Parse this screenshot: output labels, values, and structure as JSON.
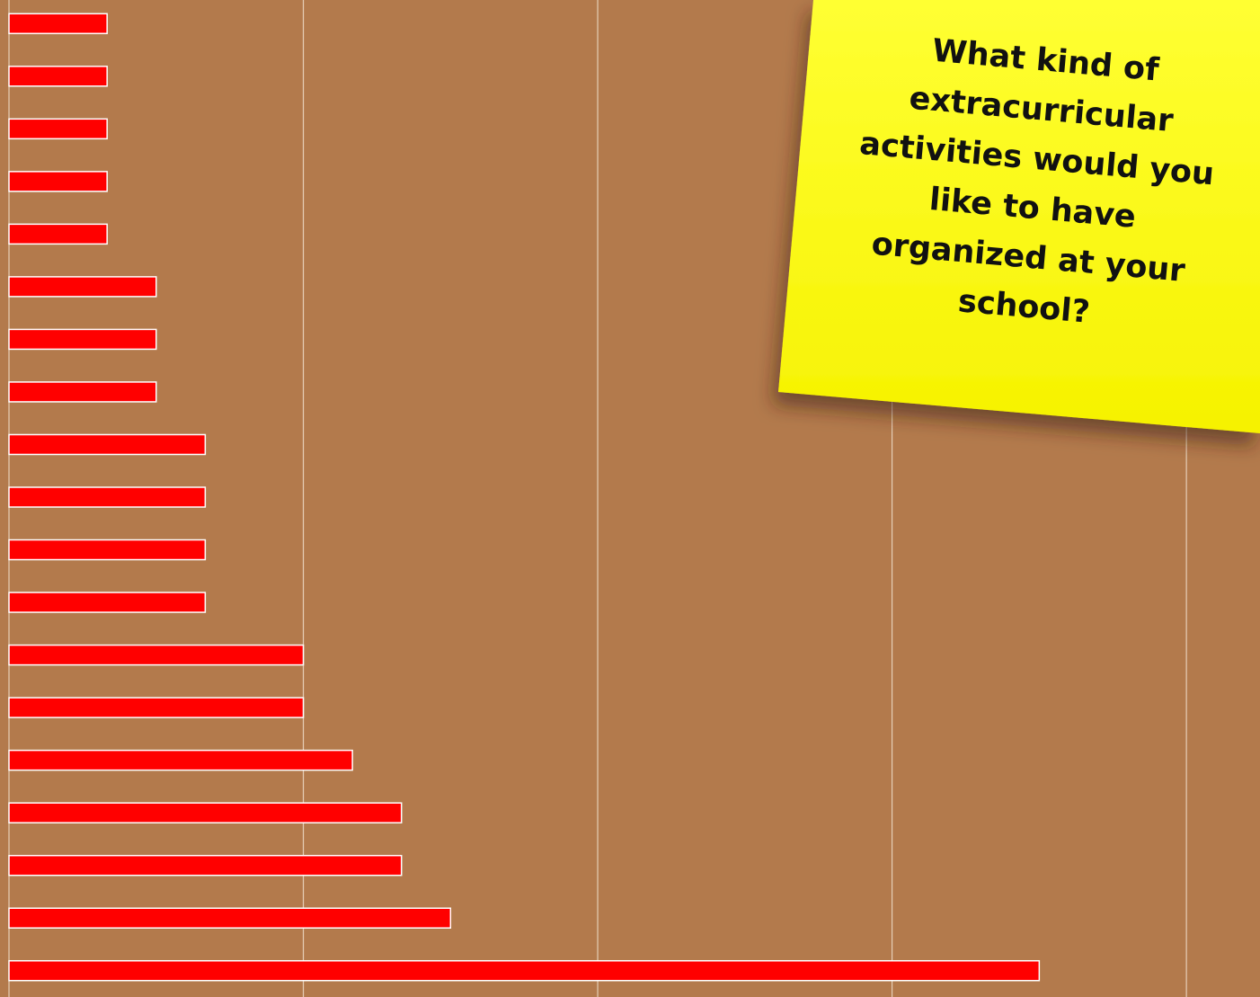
{
  "chart_data": {
    "type": "hbar",
    "title": "What kind of extracurricular activities would you like to have organized at your school?",
    "categories": [
      null,
      null,
      null,
      null,
      null,
      null,
      null,
      null,
      null,
      null,
      null,
      null,
      null,
      null,
      null,
      null,
      null,
      null,
      null
    ],
    "values": [
      2,
      2,
      2,
      2,
      2,
      3,
      3,
      3,
      4,
      4,
      4,
      4,
      6,
      6,
      7,
      8,
      8,
      9,
      21
    ],
    "color": "#ff0000",
    "xlim": [
      0,
      25.5
    ],
    "xticks": [
      0,
      6,
      12,
      18,
      24
    ],
    "grid": true
  }
}
